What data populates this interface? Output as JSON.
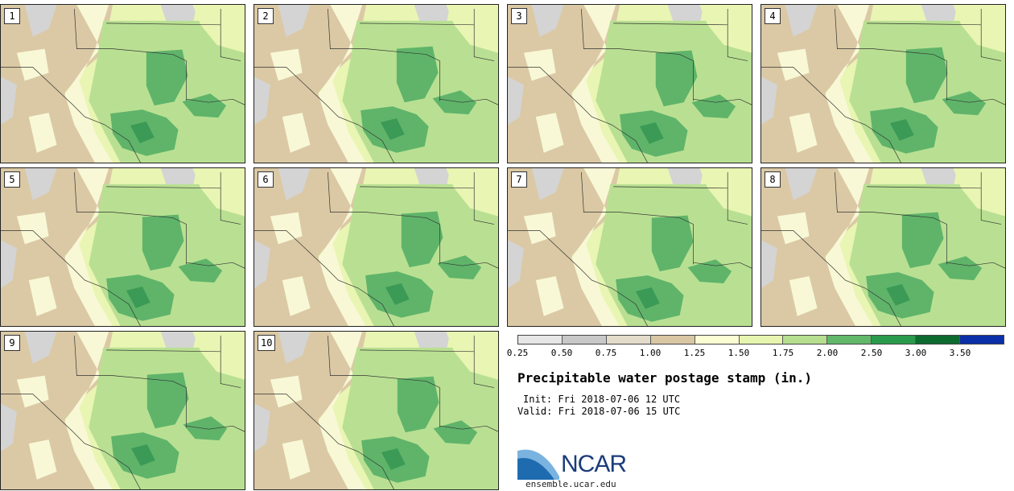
{
  "map": {
    "title": "Precipitable water postage stamp (in.)",
    "init_label": "Init: Fri 2018-07-06 12 UTC",
    "valid_label": "Valid: Fri 2018-07-06 15 UTC",
    "units": "in.",
    "members": [
      "1",
      "2",
      "3",
      "4",
      "5",
      "6",
      "7",
      "8",
      "9",
      "10"
    ],
    "colorbar": {
      "ticks": [
        "0.25",
        "0.50",
        "0.75",
        "1.00",
        "1.25",
        "1.50",
        "1.75",
        "2.00",
        "2.50",
        "3.00",
        "3.50"
      ],
      "colors": [
        "#e6e6e6",
        "#c8c8c8",
        "#e4dccb",
        "#d9c7a4",
        "#fbfdd3",
        "#e6f5b0",
        "#b6de8f",
        "#62b86a",
        "#2a9a4c",
        "#0d6b30",
        "#0a2fa8"
      ]
    },
    "palette": {
      "dry_gray": "#d4d4d4",
      "tan": "#dbc9a5",
      "cream": "#f8f8d6",
      "light_yellow": "#e9f5b3",
      "light_green": "#b9e092",
      "green": "#5fb46a",
      "dark_green": "#3b9a55",
      "borders": "#333333"
    },
    "logo": {
      "text": "NCAR",
      "site": "ensemble.ucar.edu",
      "colors": {
        "blue": "#1e6bb0",
        "light_blue": "#7ab3e0",
        "navy": "#1a3c7a"
      }
    }
  }
}
